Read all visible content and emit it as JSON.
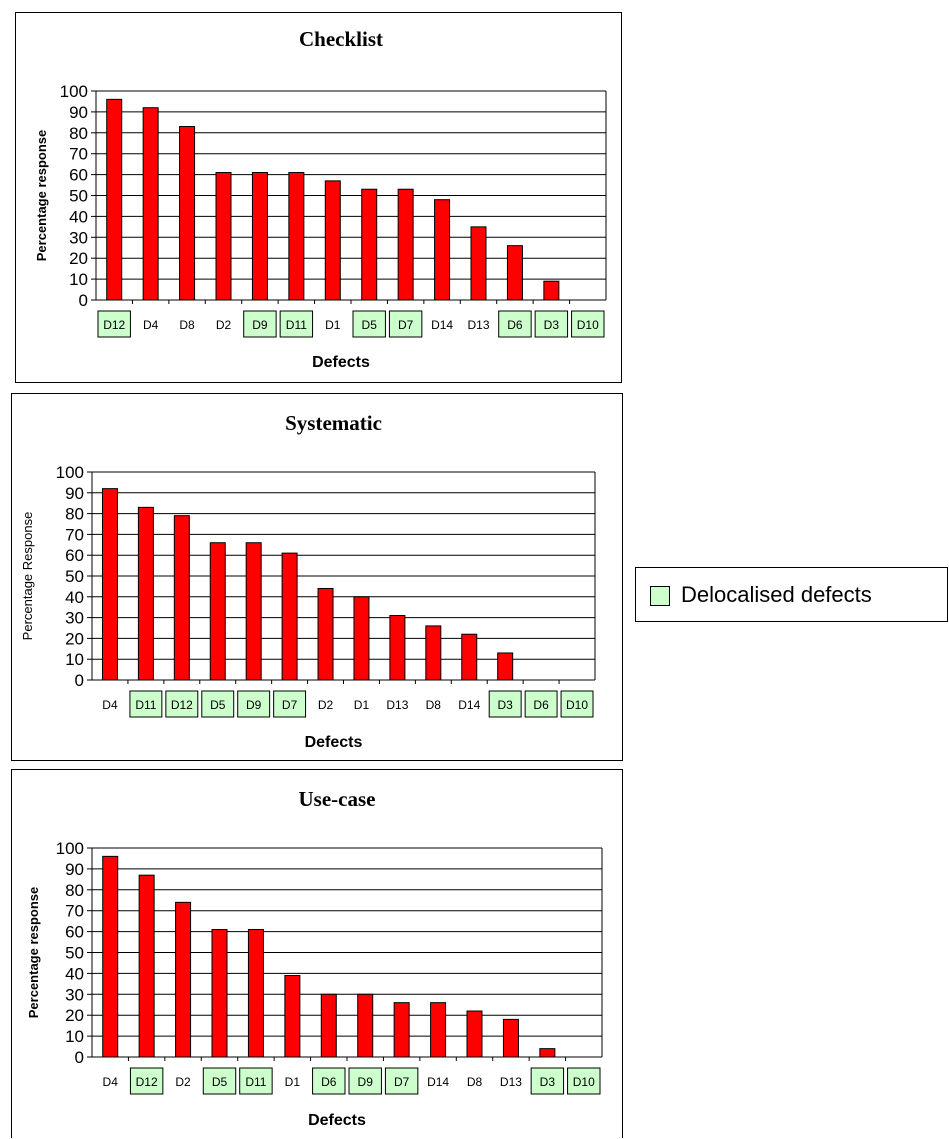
{
  "colors": {
    "bar": "#ff0000",
    "bar_stroke": "#000000",
    "highlight": "#ccffcc",
    "gridline": "#000000"
  },
  "legend": {
    "label": "Delocalised defects",
    "placement": "right"
  },
  "chart_data": [
    {
      "type": "bar",
      "title": "Checklist",
      "xlabel": "Defects",
      "ylabel": "Percentage response",
      "ylim": [
        0,
        100
      ],
      "yticks": [
        0,
        10,
        20,
        30,
        40,
        50,
        60,
        70,
        80,
        90,
        100
      ],
      "grid": true,
      "categories": [
        "D12",
        "D4",
        "D8",
        "D2",
        "D9",
        "D11",
        "D1",
        "D5",
        "D7",
        "D14",
        "D13",
        "D6",
        "D3",
        "D10"
      ],
      "values": [
        96,
        92,
        83,
        61,
        61,
        61,
        57,
        53,
        53,
        48,
        35,
        26,
        9,
        0
      ],
      "delocalised": [
        "D12",
        "D9",
        "D11",
        "D5",
        "D7",
        "D6",
        "D3",
        "D10"
      ]
    },
    {
      "type": "bar",
      "title": "Systematic",
      "xlabel": "Defects",
      "ylabel": "Percentage Response",
      "ylim": [
        0,
        100
      ],
      "yticks": [
        0,
        10,
        20,
        30,
        40,
        50,
        60,
        70,
        80,
        90,
        100
      ],
      "grid": true,
      "categories": [
        "D4",
        "D11",
        "D12",
        "D5",
        "D9",
        "D7",
        "D2",
        "D1",
        "D13",
        "D8",
        "D14",
        "D3",
        "D6",
        "D10"
      ],
      "values": [
        92,
        83,
        79,
        66,
        66,
        61,
        44,
        40,
        31,
        26,
        22,
        13,
        0,
        0
      ],
      "delocalised": [
        "D11",
        "D12",
        "D5",
        "D9",
        "D7",
        "D3",
        "D6",
        "D10"
      ]
    },
    {
      "type": "bar",
      "title": "Use-case",
      "xlabel": "Defects",
      "ylabel": "Percentage response",
      "ylim": [
        0,
        100
      ],
      "yticks": [
        0,
        10,
        20,
        30,
        40,
        50,
        60,
        70,
        80,
        90,
        100
      ],
      "grid": true,
      "categories": [
        "D4",
        "D12",
        "D2",
        "D5",
        "D11",
        "D1",
        "D6",
        "D9",
        "D7",
        "D14",
        "D8",
        "D13",
        "D3",
        "D10"
      ],
      "values": [
        96,
        87,
        74,
        61,
        61,
        39,
        30,
        30,
        26,
        26,
        22,
        18,
        4,
        0
      ],
      "delocalised": [
        "D12",
        "D5",
        "D11",
        "D6",
        "D9",
        "D7",
        "D3",
        "D10"
      ]
    }
  ]
}
